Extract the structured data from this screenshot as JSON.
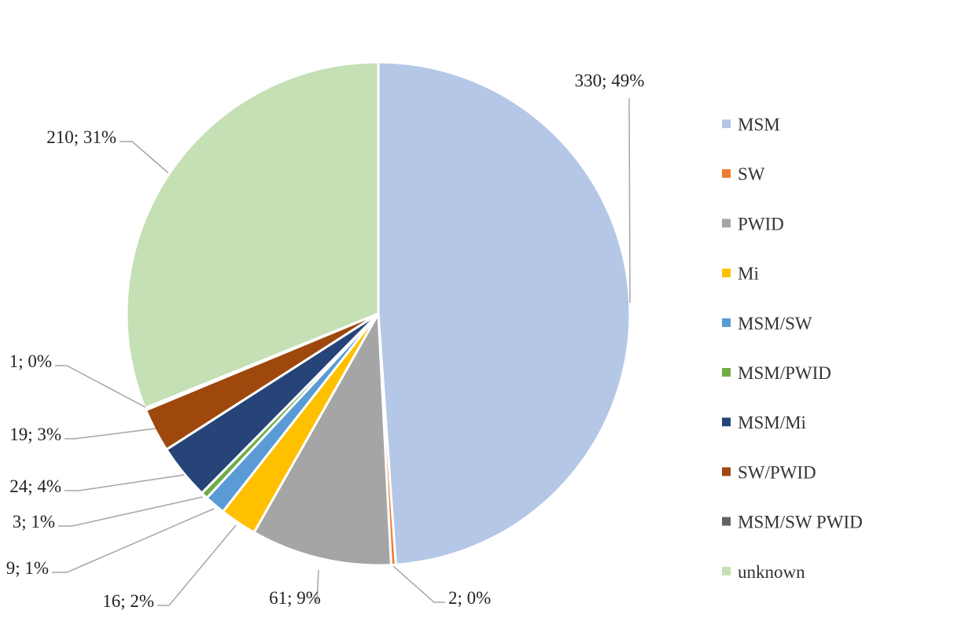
{
  "chart_data": {
    "type": "pie",
    "title": "",
    "legend_position": "right",
    "slices": [
      {
        "name": "MSM",
        "value": 330,
        "label": "330; 49%",
        "color": "#b4c7e7"
      },
      {
        "name": "SW",
        "value": 2,
        "label": "2; 0%",
        "color": "#ed7d31"
      },
      {
        "name": "PWID",
        "value": 61,
        "label": "61; 9%",
        "color": "#a5a5a5"
      },
      {
        "name": "Mi",
        "value": 16,
        "label": "16; 2%",
        "color": "#ffc000"
      },
      {
        "name": "MSM/SW",
        "value": 9,
        "label": "9; 1%",
        "color": "#5b9bd5"
      },
      {
        "name": "MSM/PWID",
        "value": 3,
        "label": "3; 1%",
        "color": "#70ad47"
      },
      {
        "name": "MSM/Mi",
        "value": 24,
        "label": "24; 4%",
        "color": "#264478"
      },
      {
        "name": "SW/PWID",
        "value": 19,
        "label": "19; 3%",
        "color": "#9e480e"
      },
      {
        "name": "MSM/SW PWID",
        "value": 1,
        "label": "1; 0%",
        "color": "#636363"
      },
      {
        "name": "unknown",
        "value": 210,
        "label": "210; 31%",
        "color": "#c5e0b4"
      }
    ]
  }
}
